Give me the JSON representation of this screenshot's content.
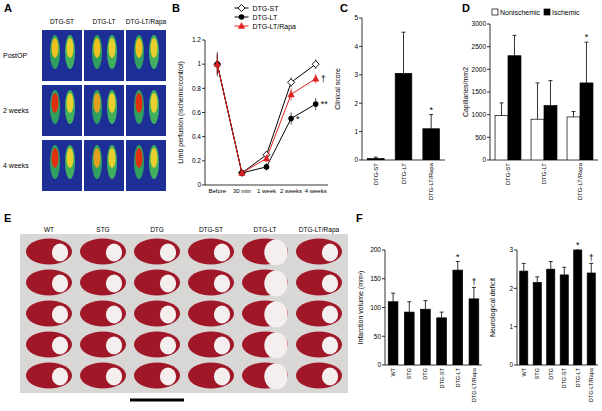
{
  "chart_data": [
    {
      "panel": "B",
      "type": "line",
      "y_label": "Limb perfusion (ischemic/control)",
      "categories": [
        "Before",
        "30 min",
        "1 week",
        "2 weeks",
        "4 weeks"
      ],
      "series": [
        {
          "name": "DTG-ST",
          "color": "#000000",
          "marker": "diamond-open",
          "values": [
            1.0,
            0.1,
            0.25,
            0.85,
            1.0
          ],
          "errors": [
            0.08,
            0.02,
            0.03,
            0.04,
            0.04
          ]
        },
        {
          "name": "DTG-LT",
          "color": "#000000",
          "marker": "circle",
          "values": [
            1.0,
            0.1,
            0.15,
            0.55,
            0.67
          ],
          "errors": [
            0.1,
            0.02,
            0.03,
            0.05,
            0.05
          ]
        },
        {
          "name": "DTG-LT/Rapa",
          "color": "#e02020",
          "marker": "triangle",
          "values": [
            1.0,
            0.1,
            0.22,
            0.75,
            0.88
          ],
          "errors": [
            0.08,
            0.02,
            0.03,
            0.05,
            0.04
          ]
        }
      ],
      "ylim": [
        0,
        1.2
      ],
      "yticks": [
        0,
        0.2,
        0.4,
        0.6,
        0.8,
        1,
        1.2
      ],
      "legend": "upper center",
      "annotations": [
        {
          "text": "*",
          "series": "DTG-LT",
          "category": "2 weeks"
        },
        {
          "text": "**",
          "series": "DTG-LT",
          "category": "4 weeks"
        },
        {
          "text": "†",
          "series": "DTG-LT/Rapa",
          "category": "4 weeks"
        }
      ]
    },
    {
      "panel": "C",
      "type": "bar",
      "y_label": "Clinical score",
      "categories": [
        "DTG-ST",
        "DTG-LT",
        "DTG-LT/Rapa"
      ],
      "values": [
        0.05,
        3.05,
        1.1
      ],
      "errors": [
        0.05,
        1.45,
        0.5
      ],
      "color": "#000000",
      "ylim": [
        0,
        5
      ],
      "yticks": [
        0,
        1,
        2,
        3,
        4,
        5
      ],
      "annotations": [
        {
          "text": "*",
          "category": "DTG-LT/Rapa"
        }
      ]
    },
    {
      "panel": "D",
      "type": "bar",
      "y_label": "Capillaries/mm2",
      "categories": [
        "DTG-ST",
        "DTG-LT",
        "DTG-LT/Rapa"
      ],
      "series": [
        {
          "name": "Nonischemic",
          "color": "#ffffff",
          "values": [
            980,
            900,
            950
          ],
          "errors": [
            280,
            800,
            120
          ]
        },
        {
          "name": "Ischemic",
          "color": "#000000",
          "values": [
            2300,
            1200,
            1700
          ],
          "errors": [
            450,
            550,
            900
          ]
        }
      ],
      "ylim": [
        0,
        3000
      ],
      "yticks": [
        0,
        500,
        1000,
        1500,
        2000,
        2500,
        3000
      ],
      "legend": "upper left",
      "annotations": [
        {
          "text": "*",
          "series": "Ischemic",
          "category": "DTG-LT/Rapa"
        }
      ]
    },
    {
      "panel": "F",
      "type": "bar",
      "y_label": "Infarction volume (mm³)",
      "categories": [
        "WT",
        "STG",
        "DTG",
        "DTG-ST",
        "DTG-LT",
        "DTG-LT/Rapa"
      ],
      "values": [
        110,
        92,
        97,
        82,
        165,
        115
      ],
      "errors": [
        15,
        18,
        15,
        10,
        15,
        20
      ],
      "color": "#000000",
      "ylim": [
        0,
        200
      ],
      "yticks": [
        0,
        50,
        100,
        150,
        200
      ],
      "annotations": [
        {
          "text": "*",
          "category": "DTG-LT"
        },
        {
          "text": "†",
          "category": "DTG-LT/Rapa"
        }
      ]
    },
    {
      "type": "bar",
      "y_label": "Neurological deficit",
      "categories": [
        "WT",
        "STG",
        "DTG",
        "DTG-ST",
        "DTG-LT",
        "DTG-LT/Rapa"
      ],
      "values": [
        2.45,
        2.15,
        2.5,
        2.35,
        3.0,
        2.4
      ],
      "errors": [
        0.2,
        0.15,
        0.2,
        0.2,
        0,
        0.25
      ],
      "color": "#000000",
      "ylim": [
        0,
        3
      ],
      "yticks": [
        0,
        1,
        2,
        3
      ],
      "annotations": [
        {
          "text": "*",
          "category": "DTG-LT"
        },
        {
          "text": "†",
          "category": "DTG-LT/Rapa"
        }
      ]
    }
  ],
  "panel_A": {
    "panel": "A",
    "columns": [
      "DTG-ST",
      "DTG-LT",
      "DTG-LT/Rapa"
    ],
    "rows": [
      "PostOP",
      "2 weeks",
      "4 weeks"
    ]
  },
  "panel_E": {
    "panel": "E",
    "columns": [
      "WT",
      "STG",
      "DTG",
      "DTG-ST",
      "DTG-LT",
      "DTG-LT/Rapa"
    ]
  }
}
